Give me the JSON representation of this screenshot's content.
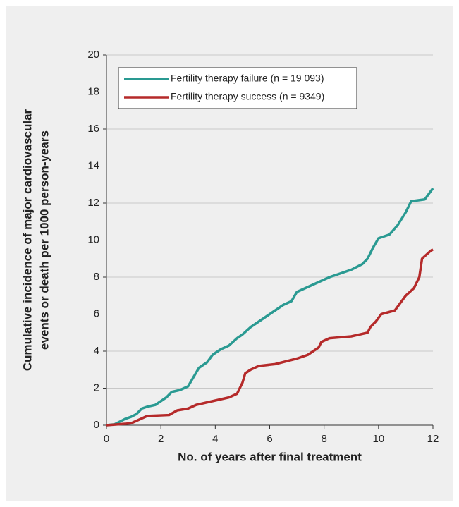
{
  "chart_data": {
    "type": "line",
    "xlabel": "No. of years after final treatment",
    "ylabel": [
      "Cumulative incidence of major cardiovascular",
      "events or death per 1000 person-years"
    ],
    "xlim": [
      0,
      12
    ],
    "xticks": [
      0,
      2,
      4,
      6,
      8,
      10,
      12
    ],
    "ylim": [
      0,
      20
    ],
    "yticks": [
      0,
      2,
      4,
      6,
      8,
      10,
      12,
      14,
      16,
      18,
      20
    ],
    "grid": true,
    "legend": "upper-left",
    "series": [
      {
        "name": "Fertility therapy failure (n = 19 093)",
        "color": "#2a9a92",
        "x": [
          0,
          0.3,
          0.5,
          0.7,
          0.9,
          1.1,
          1.3,
          1.5,
          1.8,
          2.0,
          2.2,
          2.4,
          2.7,
          3.0,
          3.2,
          3.4,
          3.7,
          3.9,
          4.2,
          4.5,
          4.8,
          5.0,
          5.3,
          5.6,
          5.9,
          6.2,
          6.5,
          6.8,
          7.0,
          7.3,
          7.6,
          7.9,
          8.2,
          8.6,
          9.0,
          9.4,
          9.6,
          9.8,
          10.0,
          10.4,
          10.7,
          11.0,
          11.2,
          11.7,
          11.9,
          12.0
        ],
        "values": [
          0,
          0.05,
          0.2,
          0.35,
          0.45,
          0.6,
          0.9,
          1.0,
          1.1,
          1.3,
          1.5,
          1.8,
          1.9,
          2.1,
          2.6,
          3.1,
          3.4,
          3.8,
          4.1,
          4.3,
          4.7,
          4.9,
          5.3,
          5.6,
          5.9,
          6.2,
          6.5,
          6.7,
          7.2,
          7.4,
          7.6,
          7.8,
          8.0,
          8.2,
          8.4,
          8.7,
          9.0,
          9.6,
          10.1,
          10.3,
          10.8,
          11.5,
          12.1,
          12.2,
          12.6,
          12.8
        ]
      },
      {
        "name": "Fertility therapy success (n = 9349)",
        "color": "#b52a2a",
        "x": [
          0,
          0.9,
          1.2,
          1.5,
          2.3,
          2.6,
          3.0,
          3.3,
          3.6,
          3.9,
          4.5,
          4.8,
          5.0,
          5.1,
          5.3,
          5.6,
          6.2,
          7.0,
          7.4,
          7.8,
          7.9,
          8.2,
          9.0,
          9.6,
          9.7,
          9.9,
          10.1,
          10.6,
          10.8,
          11.0,
          11.3,
          11.5,
          11.6,
          11.9,
          12.0
        ],
        "values": [
          0,
          0.1,
          0.3,
          0.5,
          0.55,
          0.8,
          0.9,
          1.1,
          1.2,
          1.3,
          1.5,
          1.7,
          2.3,
          2.8,
          3.0,
          3.2,
          3.3,
          3.6,
          3.8,
          4.2,
          4.5,
          4.7,
          4.8,
          5.0,
          5.3,
          5.6,
          6.0,
          6.2,
          6.6,
          7.0,
          7.4,
          8.0,
          9.0,
          9.4,
          9.5
        ]
      }
    ]
  }
}
